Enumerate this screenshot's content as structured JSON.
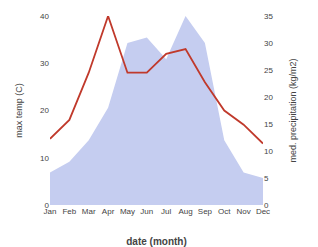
{
  "chart_data": {
    "type": "line",
    "categories": [
      "Jan",
      "Feb",
      "Mar",
      "Apr",
      "May",
      "Jun",
      "Jul",
      "Aug",
      "Sep",
      "Oct",
      "Nov",
      "Dec"
    ],
    "series": [
      {
        "type": "area",
        "axis": "y2",
        "color": "#c5cdf0",
        "values": [
          6,
          8,
          12,
          18,
          30,
          31,
          27,
          35,
          30,
          12,
          6,
          5
        ]
      },
      {
        "type": "line",
        "color": "#c0392b",
        "values": [
          14,
          18,
          28,
          40,
          28,
          28,
          32,
          33,
          26,
          20,
          17,
          13
        ]
      }
    ],
    "xlabel": "date (month)",
    "ylabel": "max temp (C)",
    "y2label": "med. precipitation (kg/m2)",
    "ylim": [
      0,
      40
    ],
    "yticks": [
      0,
      10,
      20,
      30,
      40
    ],
    "y2lim": [
      0,
      35
    ],
    "y2ticks": [
      0,
      5,
      10,
      15,
      20,
      25,
      30,
      35
    ],
    "grid": false
  }
}
